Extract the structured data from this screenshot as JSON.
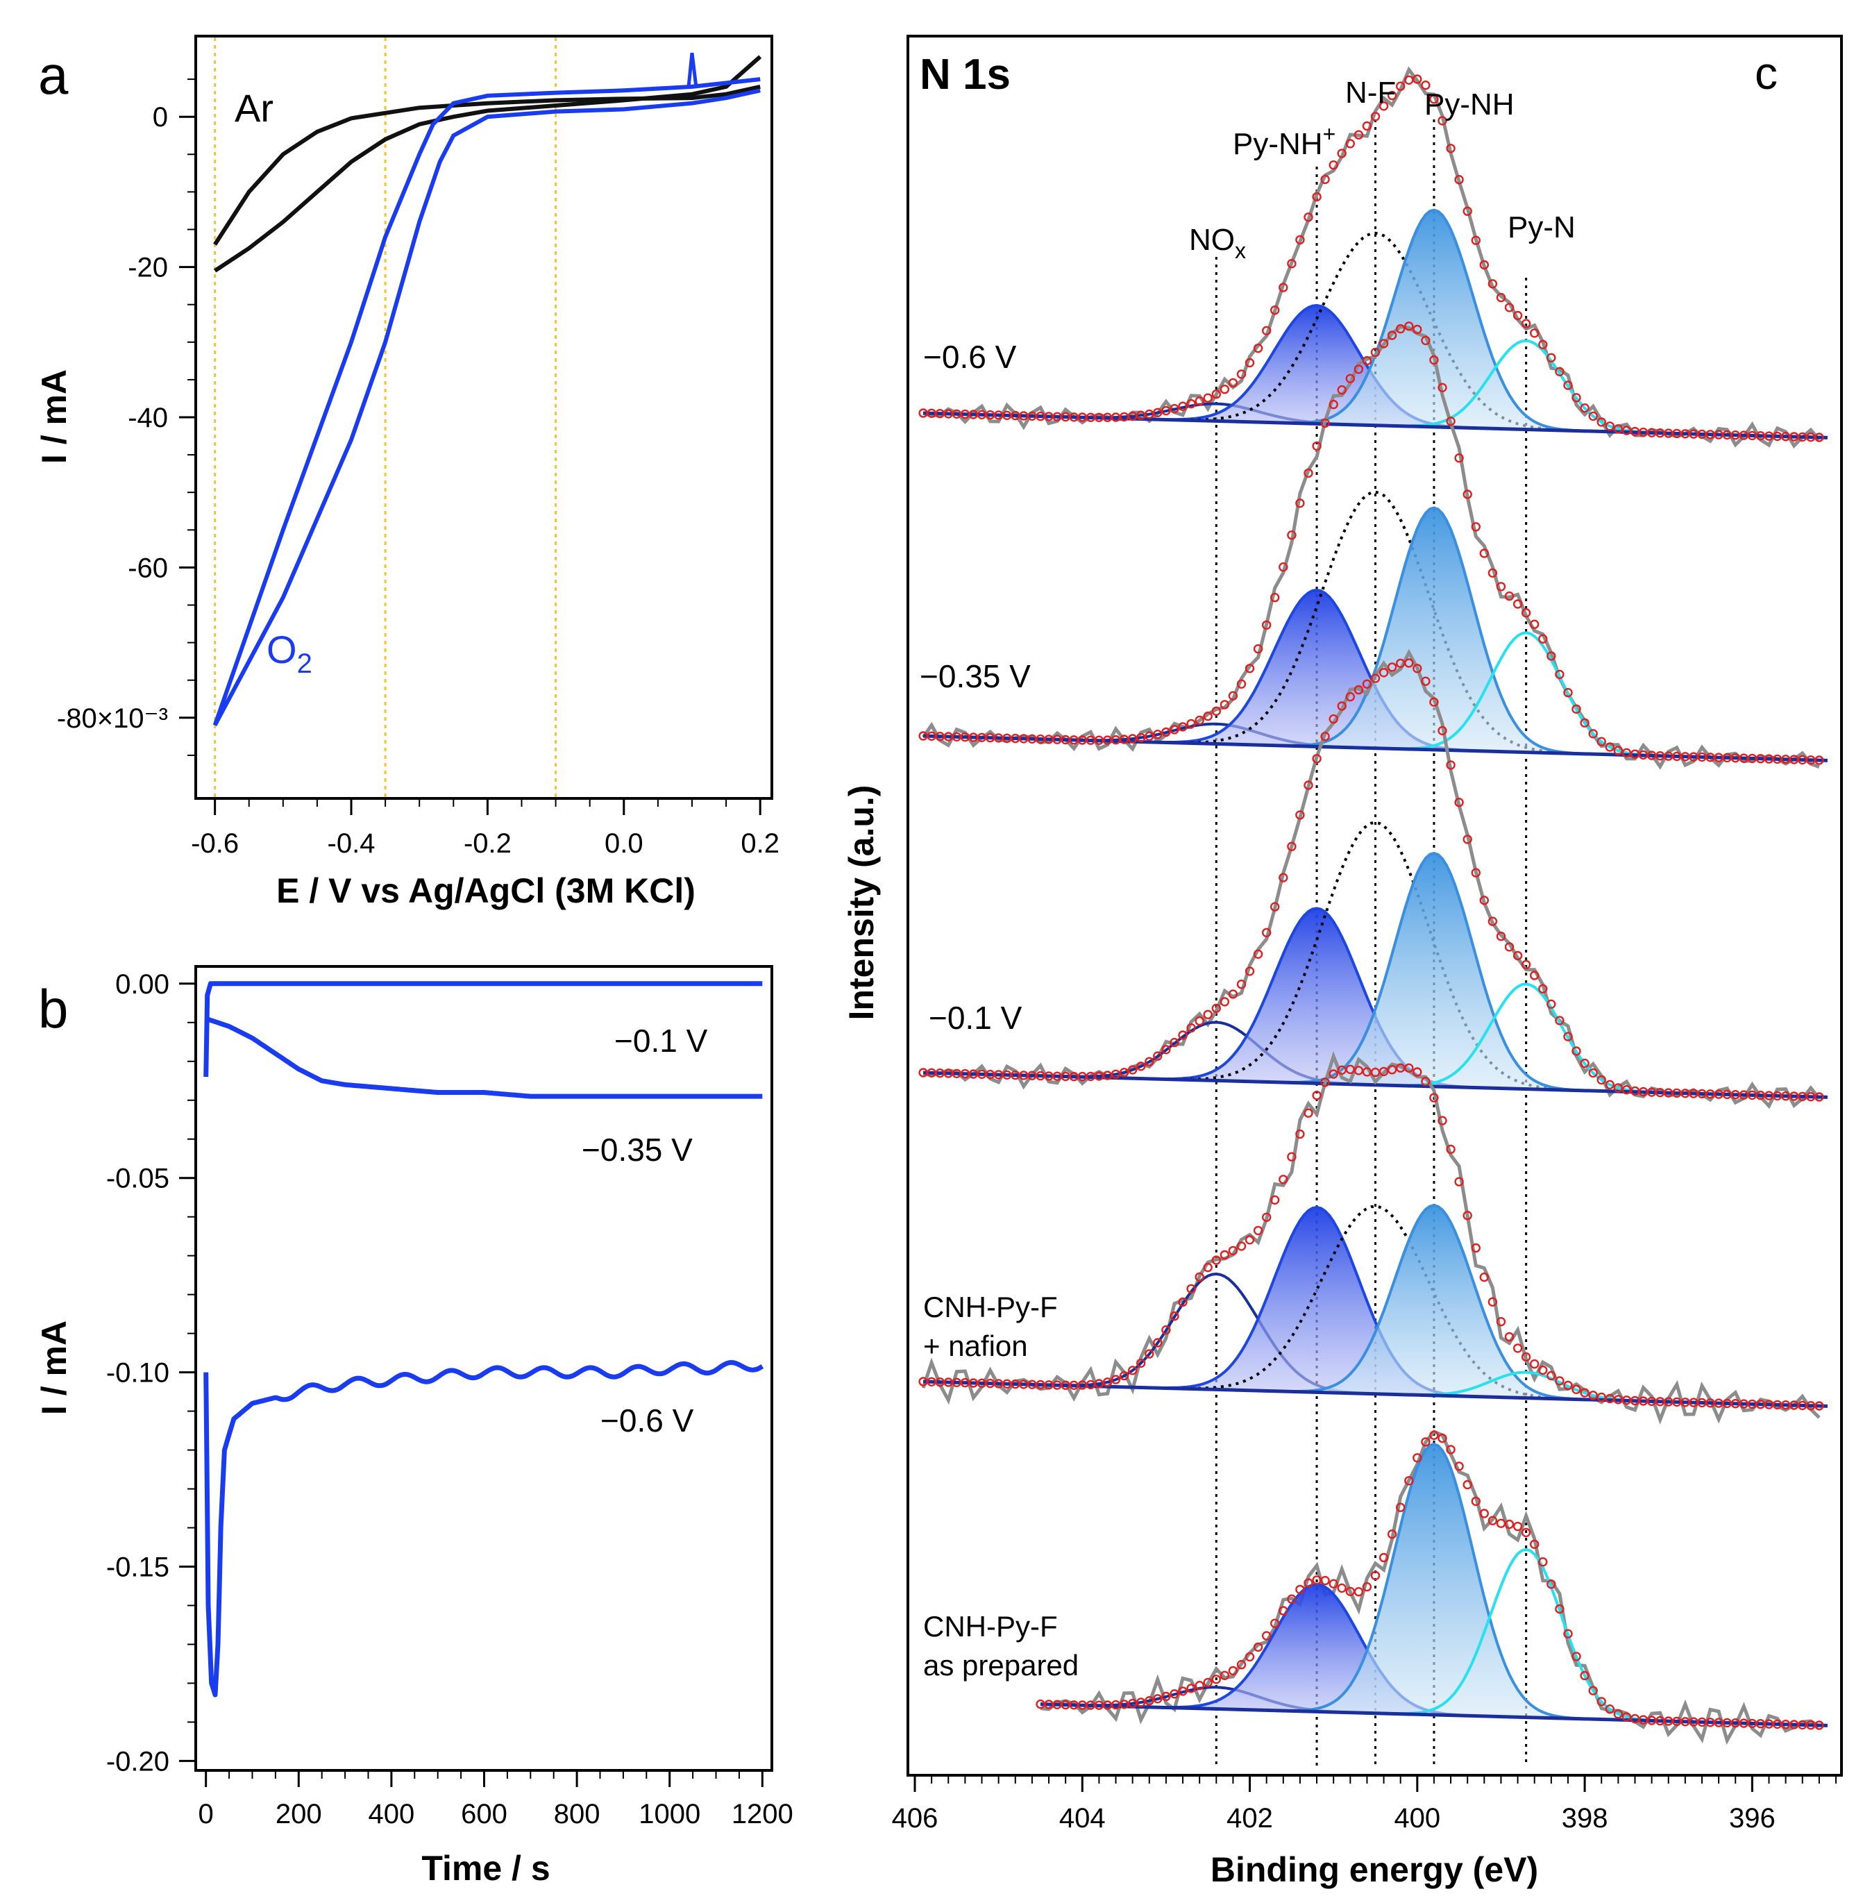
{
  "colors": {
    "blue": "#1a3cf0",
    "black": "#111111",
    "guide": "#f4c430",
    "grey": "#8c8c8c",
    "red": "#e02020",
    "navy": "#1a2f9c",
    "royal": "#1d47e0",
    "sky": "#3a8fde",
    "cyan": "#29e0ee"
  },
  "chart_data": [
    {
      "panel": "a",
      "type": "line",
      "xlabel": "E / V vs Ag/AgCl (3M KCl)",
      "ylabel": "I / mA",
      "xlim": [
        -0.62,
        0.21
      ],
      "ylim": [
        -90,
        10
      ],
      "xticks": [
        -0.6,
        -0.4,
        -0.2,
        0.0,
        0.2
      ],
      "xtick_labels": [
        "-0.6",
        "-0.4",
        "-0.2",
        "0.0",
        "0.2"
      ],
      "yticks": [
        0,
        -20,
        -40,
        -60,
        -80
      ],
      "ytick_labels": [
        "0",
        "-20",
        "-40",
        "-60",
        "-80×10⁻³"
      ],
      "guide_lines_x": [
        -0.6,
        -0.35,
        -0.1
      ],
      "series": [
        {
          "name": "Ar",
          "color": "#111111",
          "forward": [
            [
              -0.6,
              -20.5
            ],
            [
              -0.55,
              -17.5
            ],
            [
              -0.5,
              -14
            ],
            [
              -0.45,
              -10
            ],
            [
              -0.4,
              -6
            ],
            [
              -0.35,
              -3
            ],
            [
              -0.3,
              -1
            ],
            [
              -0.25,
              0
            ],
            [
              -0.2,
              0.8
            ],
            [
              -0.1,
              1.5
            ],
            [
              0.0,
              2.2
            ],
            [
              0.1,
              3
            ],
            [
              0.15,
              4
            ],
            [
              0.2,
              8
            ]
          ],
          "backward": [
            [
              0.2,
              4
            ],
            [
              0.15,
              3
            ],
            [
              0.1,
              2.5
            ],
            [
              0.0,
              2.4
            ],
            [
              -0.1,
              2.2
            ],
            [
              -0.2,
              1.8
            ],
            [
              -0.3,
              1.2
            ],
            [
              -0.4,
              -0.2
            ],
            [
              -0.45,
              -2
            ],
            [
              -0.5,
              -5
            ],
            [
              -0.55,
              -10
            ],
            [
              -0.6,
              -17
            ]
          ]
        },
        {
          "name": "O₂",
          "color": "#1a3cf0",
          "forward": [
            [
              -0.6,
              -81
            ],
            [
              -0.5,
              -64
            ],
            [
              -0.4,
              -43
            ],
            [
              -0.35,
              -30
            ],
            [
              -0.3,
              -14
            ],
            [
              -0.27,
              -6
            ],
            [
              -0.25,
              -2.5
            ],
            [
              -0.2,
              0
            ],
            [
              -0.1,
              0.7
            ],
            [
              0.0,
              1
            ],
            [
              0.1,
              1.8
            ],
            [
              0.15,
              2.5
            ],
            [
              0.2,
              3.5
            ]
          ],
          "backward": [
            [
              0.2,
              5
            ],
            [
              0.15,
              4.5
            ],
            [
              0.1,
              4
            ],
            [
              0.0,
              3.5
            ],
            [
              -0.1,
              3.2
            ],
            [
              -0.2,
              2.8
            ],
            [
              -0.25,
              1.8
            ],
            [
              -0.28,
              -1
            ],
            [
              -0.3,
              -5
            ],
            [
              -0.35,
              -16
            ],
            [
              -0.4,
              -30
            ],
            [
              -0.5,
              -55
            ],
            [
              -0.6,
              -81
            ]
          ]
        }
      ],
      "labels": {
        "Ar": "Ar",
        "O2_main": "O",
        "O2_sub": "2",
        "panel": "a"
      }
    },
    {
      "panel": "b",
      "type": "line",
      "xlabel": "Time / s",
      "ylabel": "I / mA",
      "xlim": [
        -10,
        1210
      ],
      "ylim": [
        -0.201,
        0.003
      ],
      "xticks": [
        0,
        200,
        400,
        600,
        800,
        1000,
        1200
      ],
      "xtick_labels": [
        "0",
        "200",
        "400",
        "600",
        "800",
        "1000",
        "1200"
      ],
      "yticks": [
        0.0,
        -0.05,
        -0.1,
        -0.15,
        -0.2
      ],
      "ytick_labels": [
        "0.00",
        "-0.05",
        "-0.10",
        "-0.15",
        "-0.20"
      ],
      "series": [
        {
          "name": "−0.1 V",
          "color": "#1a3cf0",
          "points": [
            [
              0,
              -0.024
            ],
            [
              3,
              -0.003
            ],
            [
              10,
              0
            ],
            [
              100,
              0
            ],
            [
              400,
              0
            ],
            [
              800,
              0
            ],
            [
              1200,
              0
            ]
          ]
        },
        {
          "name": "−0.35 V",
          "color": "#1a3cf0",
          "points": [
            [
              0,
              -0.009
            ],
            [
              50,
              -0.011
            ],
            [
              100,
              -0.014
            ],
            [
              150,
              -0.018
            ],
            [
              200,
              -0.022
            ],
            [
              250,
              -0.025
            ],
            [
              300,
              -0.026
            ],
            [
              400,
              -0.027
            ],
            [
              500,
              -0.028
            ],
            [
              600,
              -0.028
            ],
            [
              700,
              -0.029
            ],
            [
              800,
              -0.029
            ],
            [
              900,
              -0.029
            ],
            [
              1000,
              -0.029
            ],
            [
              1100,
              -0.029
            ],
            [
              1200,
              -0.029
            ]
          ]
        },
        {
          "name": "−0.6 V",
          "color": "#1a3cf0",
          "points": [
            [
              0,
              -0.1
            ],
            [
              5,
              -0.16
            ],
            [
              12,
              -0.18
            ],
            [
              20,
              -0.183
            ],
            [
              26,
              -0.17
            ],
            [
              32,
              -0.14
            ],
            [
              40,
              -0.12
            ],
            [
              60,
              -0.112
            ],
            [
              100,
              -0.108
            ],
            [
              200,
              -0.105
            ],
            [
              300,
              -0.103
            ],
            [
              400,
              -0.102
            ],
            [
              500,
              -0.101
            ],
            [
              600,
              -0.1
            ],
            [
              700,
              -0.1
            ],
            [
              800,
              -0.1
            ],
            [
              900,
              -0.1
            ],
            [
              1000,
              -0.099
            ],
            [
              1100,
              -0.099
            ],
            [
              1200,
              -0.098
            ]
          ]
        }
      ],
      "labels": {
        "v01": "−0.1 V",
        "v035": "−0.35 V",
        "v06": "−0.6 V",
        "panel": "b"
      }
    },
    {
      "panel": "c",
      "type": "line",
      "title": "N 1s",
      "xlabel": "Binding energy (eV)",
      "ylabel": "Intensity (a.u.)",
      "xlim": [
        406,
        395
      ],
      "xreversed": true,
      "xticks": [
        406,
        404,
        402,
        400,
        398,
        396
      ],
      "xtick_labels": [
        "406",
        "404",
        "402",
        "400",
        "398",
        "396"
      ],
      "peak_positions": {
        "NOx": 402.4,
        "Py-NH+": 401.2,
        "N-F": 400.5,
        "Py-NH": 399.8,
        "Py-N": 398.7
      },
      "peak_labels": {
        "NOx_main": "NO",
        "NOx_sub": "x",
        "PyNHp_main": "Py-NH",
        "PyNHp_sup": "+",
        "NF": "N-F",
        "PyNH": "Py-NH",
        "PyN": "Py-N"
      },
      "spectra": [
        {
          "label": "−0.6 V",
          "peaks": [
            {
              "name": "NOx",
              "amp": 0.07
            },
            {
              "name": "Py-NH+",
              "amp": 0.48
            },
            {
              "name": "N-F",
              "amp": 0.78
            },
            {
              "name": "Py-NH",
              "amp": 0.88
            },
            {
              "name": "Py-N",
              "amp": 0.36
            }
          ]
        },
        {
          "label": "−0.35 V",
          "peaks": [
            {
              "name": "NOx",
              "amp": 0.07
            },
            {
              "name": "Py-NH+",
              "amp": 0.55
            },
            {
              "name": "N-F",
              "amp": 0.9
            },
            {
              "name": "Py-NH",
              "amp": 0.85
            },
            {
              "name": "Py-N",
              "amp": 0.42
            }
          ]
        },
        {
          "label": "−0.1 V",
          "peaks": [
            {
              "name": "NOx",
              "amp": 0.2
            },
            {
              "name": "Py-NH+",
              "amp": 0.6
            },
            {
              "name": "N-F",
              "amp": 0.9
            },
            {
              "name": "Py-NH",
              "amp": 0.8
            },
            {
              "name": "Py-N",
              "amp": 0.36
            }
          ]
        },
        {
          "label_lines": [
            "CNH-Py-F",
            "+ nafion"
          ],
          "peaks": [
            {
              "name": "NOx",
              "amp": 0.45
            },
            {
              "name": "Py-NH+",
              "amp": 0.72
            },
            {
              "name": "N-F",
              "amp": 0.73
            },
            {
              "name": "Py-NH",
              "amp": 0.74
            },
            {
              "name": "Py-N",
              "amp": 0.1
            }
          ]
        },
        {
          "label_lines": [
            "CNH-Py-F",
            "as prepared"
          ],
          "peaks": [
            {
              "name": "NOx",
              "amp": 0.08
            },
            {
              "name": "Py-NH+",
              "amp": 0.47
            },
            {
              "name": "Py-NH",
              "amp": 1.0
            },
            {
              "name": "Py-N",
              "amp": 0.62
            }
          ]
        }
      ],
      "panel_label": "c"
    }
  ]
}
